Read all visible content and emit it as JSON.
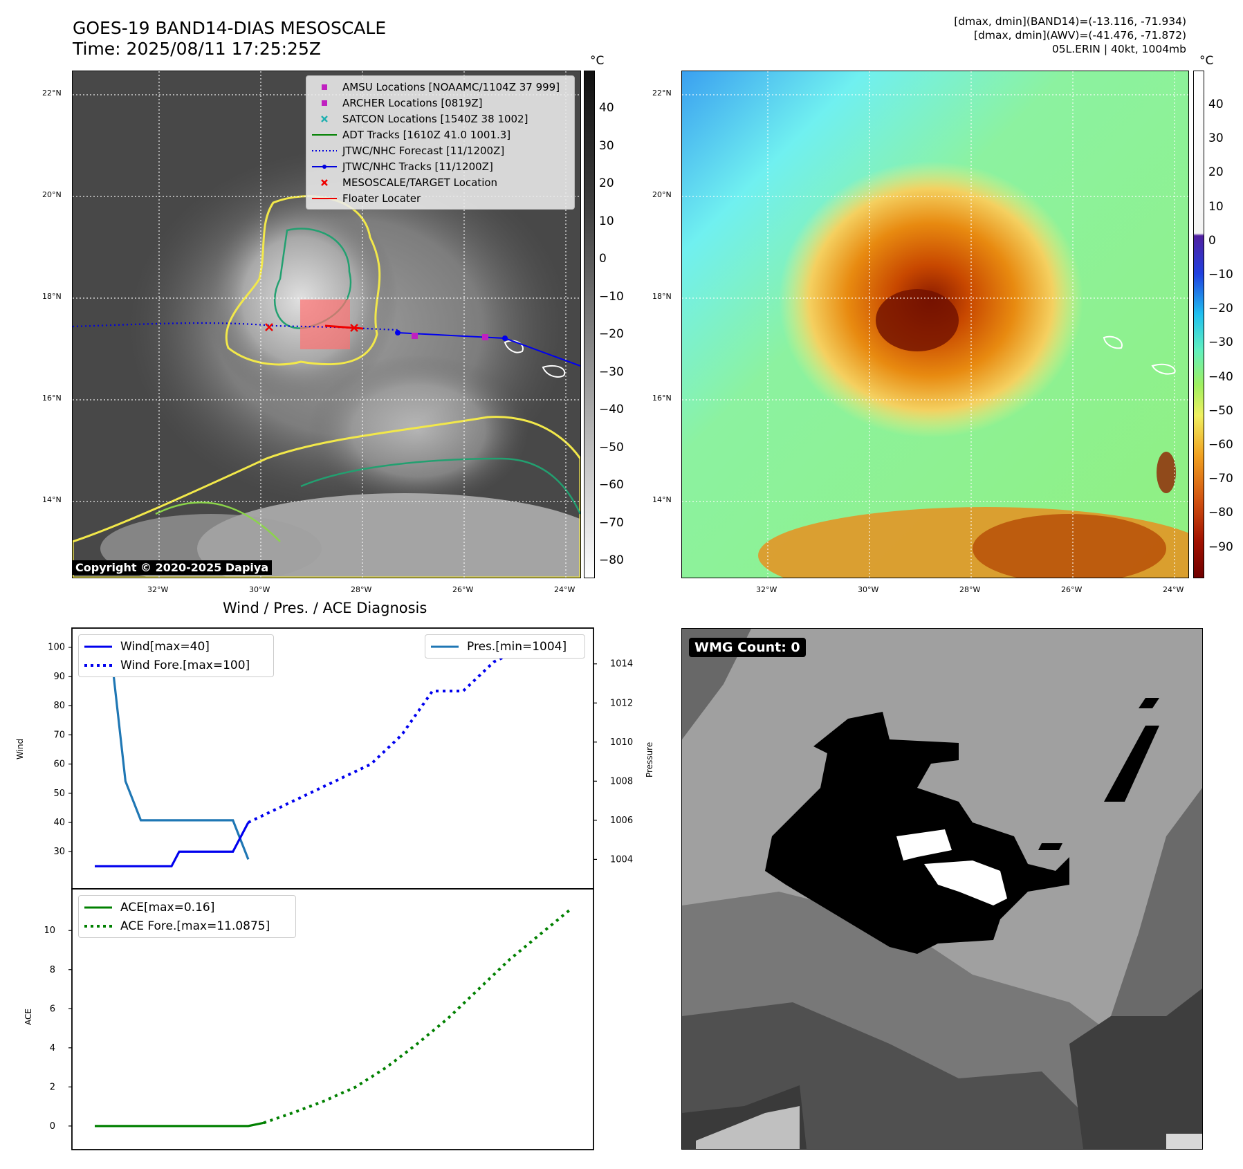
{
  "header": {
    "title_line1": "GOES-19 BAND14-DIAS MESOSCALE",
    "title_line2": "Time: 2025/08/11 17:25:25Z",
    "right_line1": "[dmax, dmin](BAND14)=(-13.116, -71.934)",
    "right_line2": "[dmax, dmin](AWV)=(-41.476, -71.872)",
    "right_line3": "05L.ERIN | 40kt, 1004mb"
  },
  "map_axes": {
    "lat_labels": [
      "22°N",
      "20°N",
      "18°N",
      "16°N",
      "14°N"
    ],
    "lon_labels": [
      "32°W",
      "30°W",
      "28°W",
      "26°W",
      "24°W"
    ]
  },
  "ir_panel": {
    "colorbar_unit": "°C",
    "colorbar_ticks": [
      "40",
      "30",
      "20",
      "10",
      "0",
      "−10",
      "−20",
      "−30",
      "−40",
      "−50",
      "−60",
      "−70",
      "−80"
    ],
    "copyright": "Copyright © 2020-2025 Dapiya",
    "legend": [
      {
        "label": "AMSU Locations [NOAAMC/1104Z 37 999]",
        "marker": "square",
        "color": "#c020c0"
      },
      {
        "label": "ARCHER Locations [0819Z]",
        "marker": "square",
        "color": "#c020c0"
      },
      {
        "label": "SATCON Locations [1540Z 38 1002]",
        "marker": "x",
        "color": "#20b0b0"
      },
      {
        "label": "ADT Tracks [1610Z 41.0 1001.3]",
        "marker": "line",
        "color": "#008000"
      },
      {
        "label": "JTWC/NHC Forecast [11/1200Z]",
        "marker": "dotted",
        "color": "#0000dd"
      },
      {
        "label": "JTWC/NHC Tracks [11/1200Z]",
        "marker": "line-dot",
        "color": "#0000dd"
      },
      {
        "label": "MESOSCALE/TARGET Location",
        "marker": "x",
        "color": "#ee0000"
      },
      {
        "label": "Floater Locater",
        "marker": "line",
        "color": "#ee0000"
      }
    ]
  },
  "wv_panel": {
    "colorbar_unit": "°C",
    "colorbar_ticks": [
      "40",
      "30",
      "20",
      "10",
      "0",
      "−10",
      "−20",
      "−30",
      "−40",
      "−50",
      "−60",
      "−70",
      "−80",
      "−90"
    ]
  },
  "diagnosis": {
    "title": "Wind / Pres. / ACE Diagnosis",
    "wind_ylabel": "Wind",
    "pres_ylabel": "Pressure",
    "ace_ylabel": "ACE",
    "legend_wind": "Wind[max=40]",
    "legend_wind_fore": "Wind Fore.[max=100]",
    "legend_pres": "Pres.[min=1004]",
    "legend_ace": "ACE[max=0.16]",
    "legend_ace_fore": "ACE Fore.[max=11.0875]"
  },
  "wmg": {
    "count_label": "WMG Count: 0"
  },
  "chart_data": [
    {
      "type": "line",
      "title": "Wind / Pres. / ACE Diagnosis",
      "ylabel": "Wind",
      "ylim": [
        22,
        103
      ],
      "yticks": [
        30,
        40,
        50,
        60,
        70,
        80,
        90,
        100
      ],
      "series": [
        {
          "name": "Wind[max=40]",
          "style": "solid",
          "color": "#0000ee",
          "x": [
            0,
            1,
            2,
            3,
            4,
            5,
            5.5,
            6,
            7,
            8,
            9,
            10
          ],
          "y": [
            25,
            25,
            25,
            25,
            25,
            25,
            30,
            30,
            30,
            30,
            30,
            40
          ]
        },
        {
          "name": "Wind Fore.[max=100]",
          "style": "dotted",
          "color": "#0000ee",
          "x": [
            10,
            12,
            14,
            16,
            18,
            20,
            22,
            24,
            26,
            28,
            30
          ],
          "y": [
            40,
            45,
            50,
            55,
            60,
            70,
            85,
            85,
            95,
            100,
            100
          ]
        }
      ]
    },
    {
      "type": "line",
      "ylabel": "Pressure",
      "ylim": [
        1003.2,
        1015.3
      ],
      "yticks": [
        1004,
        1006,
        1008,
        1010,
        1012,
        1014
      ],
      "series": [
        {
          "name": "Pres.[min=1004]",
          "style": "solid",
          "color": "#1f77b4",
          "x": [
            0,
            1,
            2,
            3,
            4,
            5,
            6,
            7,
            8,
            9,
            10
          ],
          "y": [
            1015,
            1015,
            1008,
            1006,
            1006,
            1006,
            1006,
            1006,
            1006,
            1006,
            1004
          ]
        }
      ]
    },
    {
      "type": "line",
      "ylabel": "ACE",
      "ylim": [
        -0.5,
        11.6
      ],
      "yticks": [
        0,
        2,
        4,
        6,
        8,
        10
      ],
      "series": [
        {
          "name": "ACE[max=0.16]",
          "style": "solid",
          "color": "#008000",
          "x": [
            0,
            2,
            4,
            6,
            8,
            10,
            11
          ],
          "y": [
            0,
            0,
            0,
            0,
            0,
            0.0,
            0.16
          ]
        },
        {
          "name": "ACE Fore.[max=11.0875]",
          "style": "dotted",
          "color": "#008000",
          "x": [
            11,
            13,
            15,
            17,
            19,
            21,
            23,
            25,
            27,
            29,
            31
          ],
          "y": [
            0.16,
            0.7,
            1.3,
            2.0,
            3.0,
            4.2,
            5.5,
            7.0,
            8.5,
            9.8,
            11.0875
          ]
        }
      ]
    }
  ]
}
